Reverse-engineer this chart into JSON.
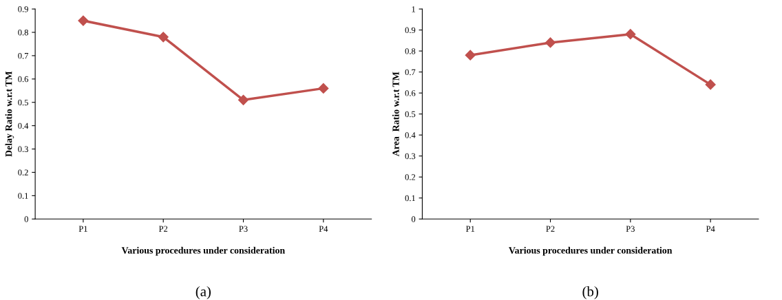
{
  "chart_data": [
    {
      "type": "line",
      "ylabel": "Delay Ratio w.r.t TM",
      "xlabel": "Various procedures under consideration",
      "categories": [
        "P1",
        "P2",
        "P3",
        "P4"
      ],
      "series": [
        {
          "color": "#c0504d",
          "values": [
            0.85,
            0.78,
            0.51,
            0.56
          ]
        }
      ],
      "ylim": [
        0,
        0.9
      ],
      "yticks": [
        0,
        0.1,
        0.2,
        0.3,
        0.4,
        0.5,
        0.6,
        0.7,
        0.8,
        0.9
      ],
      "marker": "diamond",
      "line_style": "solid",
      "grid": false,
      "annotations": [
        "(a)"
      ]
    },
    {
      "type": "line",
      "ylabel": "Area  Ratio w.r.t TM",
      "xlabel": "Various procedures under consideration",
      "categories": [
        "P1",
        "P2",
        "P3",
        "P4"
      ],
      "series": [
        {
          "color": "#c0504d",
          "values": [
            0.78,
            0.84,
            0.88,
            0.64
          ]
        }
      ],
      "ylim": [
        0,
        1
      ],
      "yticks": [
        0,
        0.1,
        0.2,
        0.3,
        0.4,
        0.5,
        0.6,
        0.7,
        0.8,
        0.9,
        1
      ],
      "marker": "diamond",
      "line_style": "solid",
      "grid": false,
      "annotations": [
        "(b)"
      ]
    }
  ]
}
